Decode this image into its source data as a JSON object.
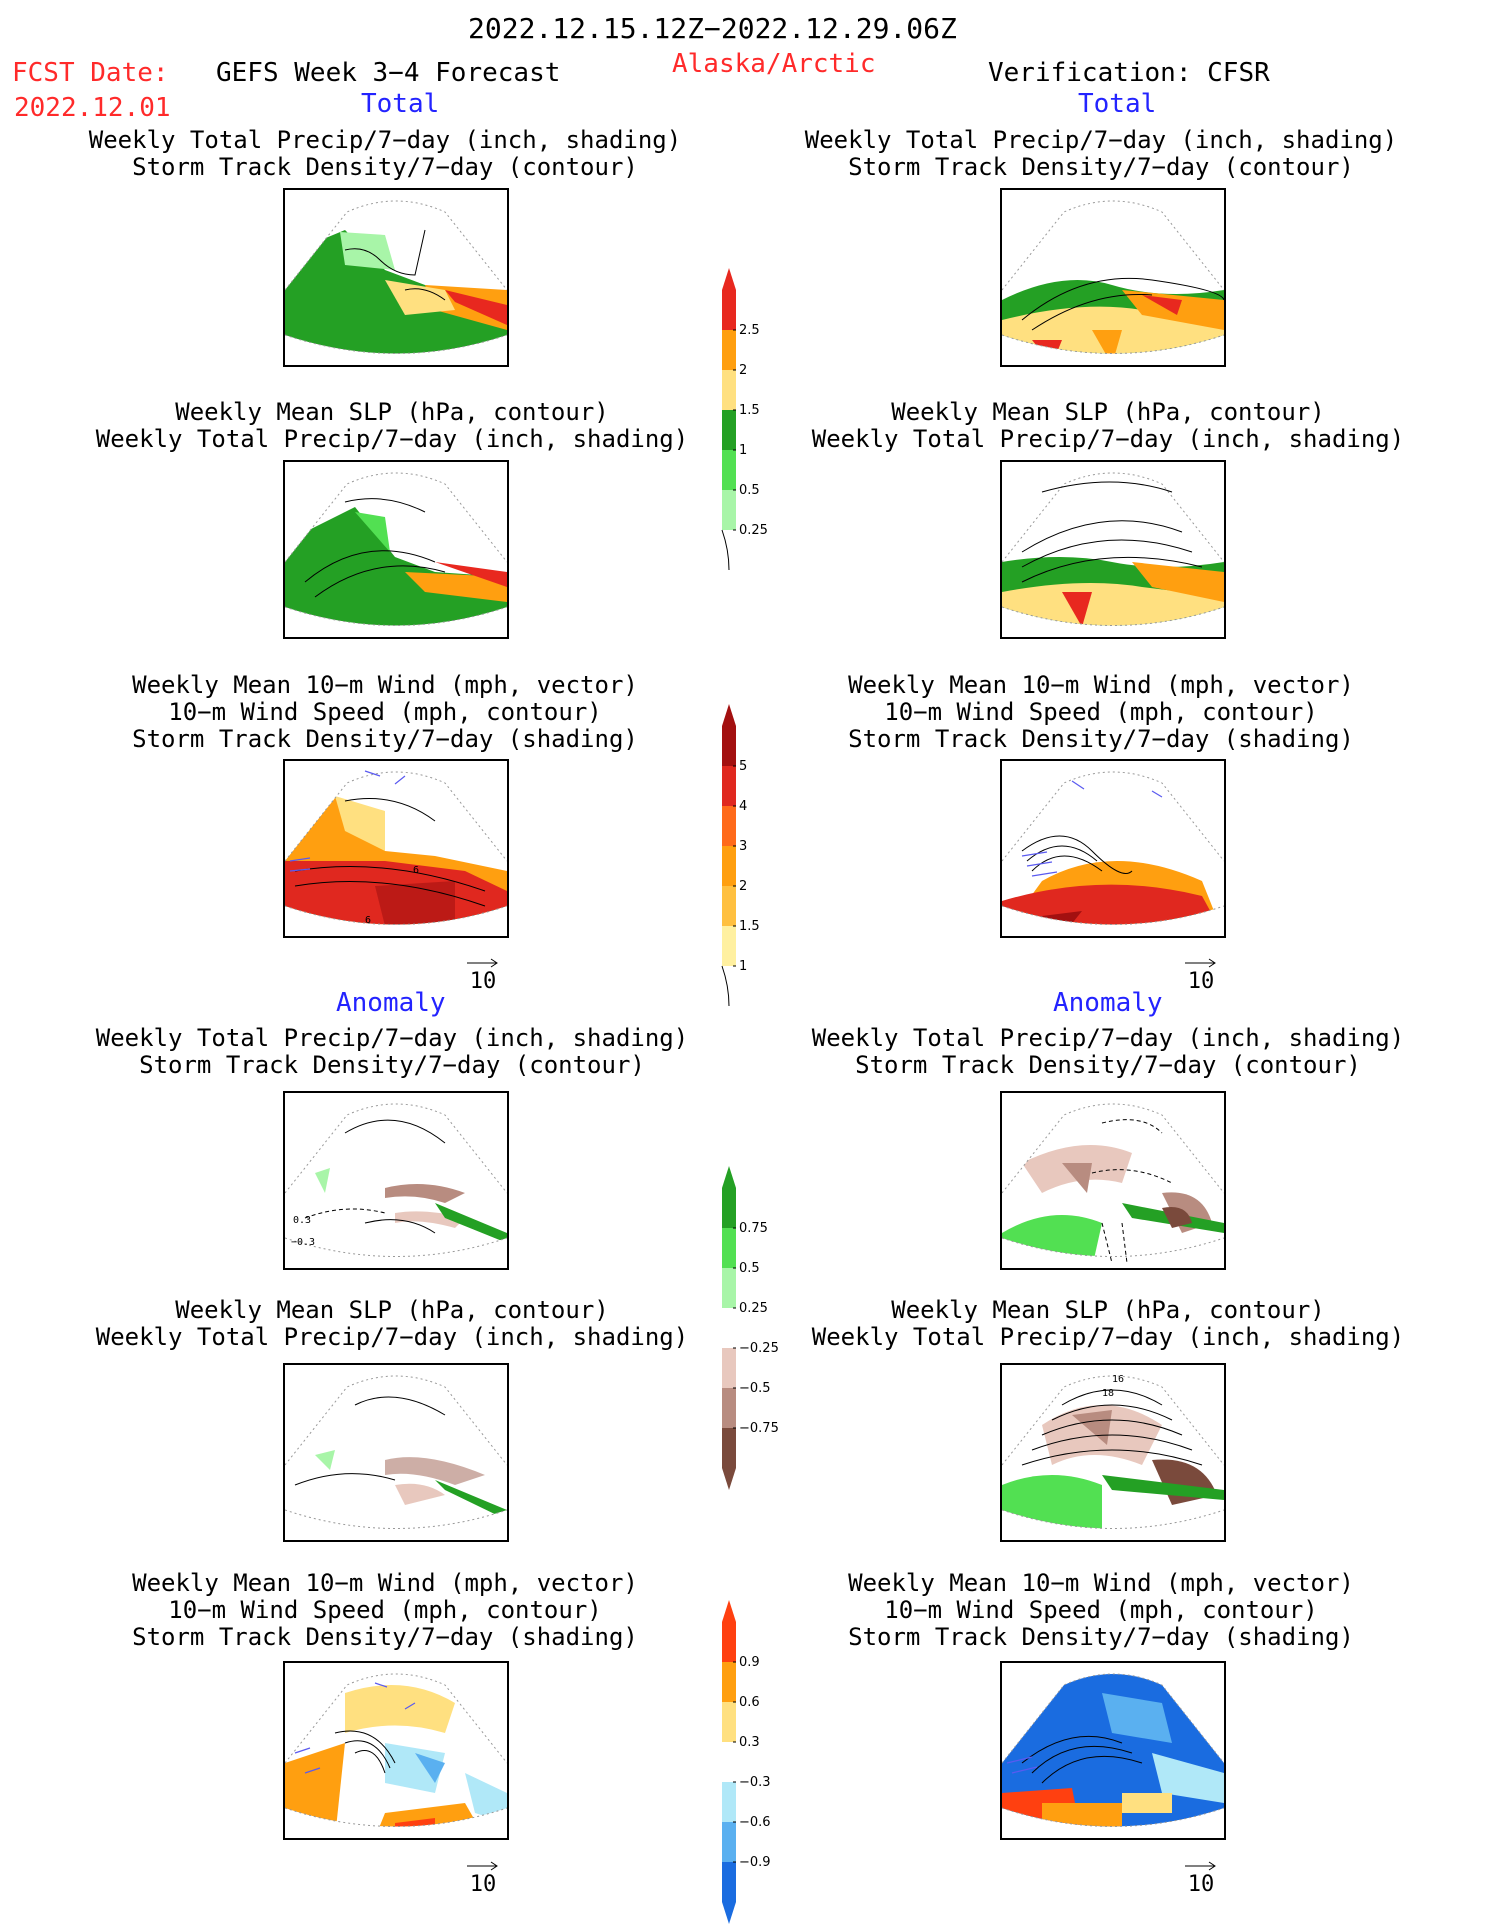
{
  "header": {
    "date_range": "2022.12.15.12Z−2022.12.29.06Z",
    "fcst_label": "FCST Date:",
    "fcst_date": "2022.12.01",
    "model": "GEFS Week 3−4 Forecast",
    "region": "Alaska/Arctic",
    "verification": "Verification: CFSR"
  },
  "sections": {
    "total": "Total",
    "anomaly": "Anomaly"
  },
  "captions": {
    "precip_storm": [
      "Weekly Total Precip/7−day (inch, shading)",
      "Storm Track Density/7−day (contour)"
    ],
    "slp_precip": [
      "Weekly Mean SLP (hPa, contour)",
      "Weekly Total Precip/7−day (inch, shading)"
    ],
    "wind": [
      "Weekly Mean 10−m Wind (mph, vector)",
      "10−m Wind Speed (mph, contour)",
      "Storm Track Density/7−day (shading)"
    ]
  },
  "vector_scale": "10",
  "colorbars": {
    "precip_total": {
      "labels": [
        "2.5",
        "2",
        "1.5",
        "1",
        "0.5",
        "0.25"
      ],
      "colors": [
        "#e8281f",
        "#ff9f10",
        "#ffe080",
        "#24a024",
        "#52e052",
        "#a8f5a8"
      ]
    },
    "storm_total": {
      "labels": [
        "5",
        "4",
        "3",
        "2",
        "1.5",
        "1"
      ],
      "colors": [
        "#a31010",
        "#e0281f",
        "#ff6a1a",
        "#ff9f10",
        "#ffc040",
        "#fff0a0"
      ]
    },
    "precip_anom": {
      "labels": [
        "0.75",
        "0.5",
        "0.25",
        "−0.25",
        "−0.5",
        "−0.75"
      ],
      "colors": [
        "#24a024",
        "#52e052",
        "#a8f5a8",
        "#ffffff",
        "#e8c8be",
        "#b88c80",
        "#7a4a3c"
      ]
    },
    "storm_anom": {
      "labels": [
        "0.9",
        "0.6",
        "0.3",
        "−0.3",
        "−0.6",
        "−0.9"
      ],
      "colors": [
        "#ff4010",
        "#ff9f10",
        "#ffe080",
        "#ffffff",
        "#b0e8f8",
        "#5ab0f0",
        "#1a6ce0"
      ]
    }
  },
  "panel_labels": {
    "wind_fcst_contours": [
      "6",
      "6"
    ],
    "precip_anom_fcst_contours": [
      "0.3",
      "−0.3"
    ],
    "slp_anom_cfsr_contours": [
      "16",
      "18"
    ]
  },
  "colors": {
    "title_red": "#ff2a2a",
    "section_blue": "#2323ff",
    "vector_blue": "#5a5af0"
  }
}
